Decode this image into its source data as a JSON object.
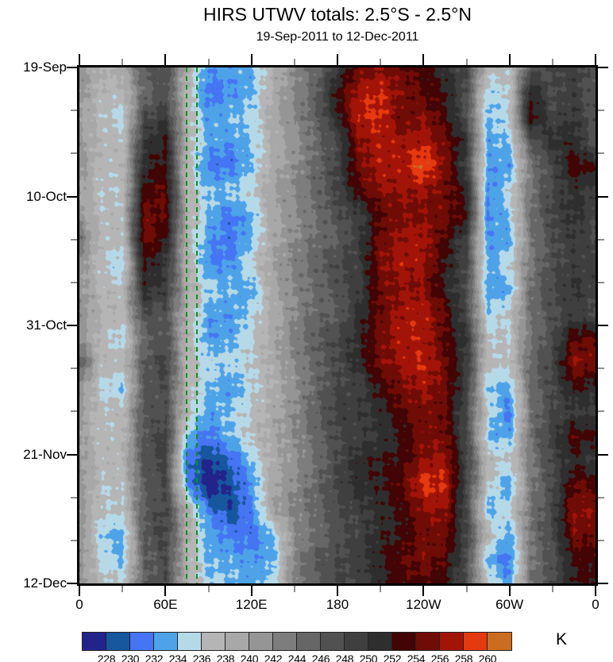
{
  "chart_data": {
    "type": "heatmap",
    "title": "HIRS UTWV totals: 2.5°S - 2.5°N",
    "subtitle": "19-Sep-2011 to 12-Dec-2011",
    "x_axis": {
      "range_deg": [
        0,
        360
      ],
      "major_ticks": [
        {
          "lon": 0,
          "label": "0"
        },
        {
          "lon": 60,
          "label": "60E"
        },
        {
          "lon": 120,
          "label": "120E"
        },
        {
          "lon": 180,
          "label": "180"
        },
        {
          "lon": 240,
          "label": "120W"
        },
        {
          "lon": 300,
          "label": "60W"
        },
        {
          "lon": 360,
          "label": "0"
        }
      ],
      "minor_lons": [
        30,
        90,
        150,
        210,
        270,
        330
      ]
    },
    "y_axis": {
      "range_days": [
        0,
        84
      ],
      "major_ticks": [
        {
          "day": 0,
          "label": "19-Sep"
        },
        {
          "day": 21,
          "label": "10-Oct"
        },
        {
          "day": 42,
          "label": "31-Oct"
        },
        {
          "day": 63,
          "label": "21-Nov"
        },
        {
          "day": 84,
          "label": "12-Dec"
        }
      ],
      "minor_days": [
        7,
        14,
        28,
        35,
        49,
        56,
        70,
        77
      ]
    },
    "colorbar": {
      "unit": "K",
      "boundary_labels": [
        "228",
        "230",
        "232",
        "234",
        "236",
        "238",
        "240",
        "242",
        "244",
        "246",
        "248",
        "250",
        "252",
        "254",
        "256",
        "258",
        "260"
      ],
      "segment_colors": [
        "#23238c",
        "#16579e",
        "#4575f2",
        "#4ea3e8",
        "#b6d9e8",
        "#b5b5b5",
        "#a8a8a8",
        "#959595",
        "#7d7d7d",
        "#666666",
        "#515151",
        "#3f3f3f",
        "#2e2e2e",
        "#420404",
        "#700c06",
        "#a31408",
        "#e5390f",
        "#ca6d20"
      ]
    },
    "levels_K": {
      "min_boundary": 228,
      "max_boundary": 260,
      "step": 2
    },
    "lon_grid_step_deg": 15,
    "time_grid_step_days": 4,
    "values_K": [
      [
        241,
        237,
        238,
        246,
        248,
        238,
        232,
        233,
        234,
        239,
        242,
        245,
        250,
        255,
        256,
        254,
        252,
        250,
        248,
        237,
        236,
        246,
        248,
        250,
        247
      ],
      [
        241,
        237,
        237,
        245,
        248,
        238,
        231,
        232,
        234,
        239,
        242,
        245,
        252,
        257,
        258,
        255,
        253,
        252,
        248,
        235,
        236,
        252,
        248,
        250,
        247
      ],
      [
        241,
        237,
        235,
        248,
        250,
        238,
        232,
        233,
        234,
        239,
        242,
        245,
        251,
        258,
        259,
        255,
        256,
        253,
        248,
        234,
        236,
        253,
        248,
        250,
        247
      ],
      [
        241,
        237,
        236,
        249,
        252,
        238,
        233,
        232,
        234,
        239,
        242,
        245,
        248,
        256,
        258,
        257,
        257,
        254,
        250,
        233,
        234,
        246,
        250,
        251,
        247
      ],
      [
        241,
        237,
        237,
        251,
        253,
        238,
        232,
        231,
        234,
        239,
        242,
        245,
        248,
        254,
        257,
        257,
        260,
        255,
        248,
        233,
        233,
        244,
        248,
        254,
        253
      ],
      [
        241,
        237,
        237,
        253,
        254,
        238,
        234,
        234,
        235,
        239,
        242,
        245,
        248,
        253,
        256,
        257,
        257,
        255,
        252,
        232,
        236,
        244,
        248,
        250,
        249
      ],
      [
        241,
        237,
        237,
        254,
        253,
        238,
        234,
        231,
        233,
        239,
        242,
        245,
        248,
        249,
        254,
        256,
        256,
        255,
        252,
        231,
        234,
        244,
        248,
        250,
        248
      ],
      [
        243,
        237,
        237,
        255,
        252,
        238,
        233,
        232,
        234,
        239,
        242,
        245,
        246,
        249,
        254,
        256,
        257,
        253,
        248,
        232,
        233,
        244,
        248,
        250,
        248
      ],
      [
        241,
        237,
        235,
        253,
        250,
        238,
        232,
        232,
        236,
        239,
        242,
        245,
        248,
        249,
        255,
        257,
        257,
        253,
        249,
        233,
        236,
        244,
        248,
        249,
        248
      ],
      [
        241,
        237,
        237,
        251,
        249,
        238,
        234,
        234,
        233,
        239,
        242,
        245,
        248,
        250,
        255,
        256,
        256,
        252,
        248,
        232,
        232,
        244,
        248,
        250,
        248
      ],
      [
        241,
        237,
        237,
        248,
        247,
        238,
        233,
        233,
        236,
        239,
        242,
        245,
        246,
        251,
        254,
        256,
        257,
        254,
        248,
        234,
        236,
        244,
        248,
        250,
        248
      ],
      [
        241,
        237,
        235,
        246,
        248,
        238,
        232,
        233,
        236,
        239,
        242,
        245,
        248,
        251,
        255,
        257,
        257,
        254,
        251,
        237,
        236,
        244,
        248,
        254,
        254
      ],
      [
        247,
        237,
        237,
        246,
        249,
        237,
        234,
        234,
        236,
        239,
        242,
        245,
        248,
        252,
        256,
        257,
        258,
        255,
        250,
        237,
        236,
        244,
        248,
        256,
        255
      ],
      [
        241,
        235,
        233,
        246,
        248,
        238,
        234,
        232,
        236,
        239,
        242,
        245,
        248,
        249,
        253,
        255,
        256,
        254,
        249,
        234,
        233,
        244,
        248,
        253,
        252
      ],
      [
        241,
        237,
        237,
        247,
        248,
        238,
        233,
        234,
        236,
        239,
        242,
        245,
        248,
        249,
        251,
        254,
        255,
        254,
        248,
        237,
        232,
        244,
        248,
        250,
        250
      ],
      [
        241,
        237,
        237,
        246,
        249,
        234,
        231,
        233,
        236,
        239,
        242,
        245,
        248,
        249,
        251,
        253,
        256,
        255,
        248,
        234,
        233,
        244,
        248,
        253,
        252
      ],
      [
        241,
        237,
        237,
        246,
        248,
        231,
        228,
        230,
        234,
        239,
        242,
        245,
        248,
        251,
        252,
        253,
        256,
        256,
        248,
        237,
        236,
        243,
        248,
        251,
        250
      ],
      [
        241,
        237,
        237,
        246,
        248,
        233,
        227,
        229,
        232,
        239,
        242,
        245,
        248,
        250,
        251,
        254,
        259,
        258,
        248,
        237,
        233,
        244,
        248,
        254,
        254
      ],
      [
        241,
        237,
        237,
        246,
        248,
        238,
        231,
        228,
        231,
        239,
        242,
        245,
        248,
        249,
        251,
        253,
        257,
        257,
        248,
        233,
        236,
        244,
        248,
        255,
        255
      ],
      [
        241,
        234,
        233,
        246,
        248,
        238,
        233,
        232,
        231,
        234,
        242,
        245,
        248,
        249,
        251,
        252,
        255,
        255,
        248,
        237,
        232,
        244,
        248,
        255,
        254
      ],
      [
        241,
        235,
        234,
        246,
        248,
        238,
        234,
        234,
        233,
        233,
        242,
        246,
        248,
        249,
        251,
        253,
        255,
        254,
        248,
        233,
        231,
        244,
        248,
        253,
        253
      ],
      [
        241,
        237,
        237,
        246,
        248,
        238,
        234,
        234,
        233,
        234,
        242,
        245,
        248,
        249,
        251,
        253,
        254,
        253,
        248,
        237,
        232,
        244,
        248,
        252,
        252
      ]
    ],
    "reference_lines": {
      "type": "vertical-dashed",
      "color": "#0d9222",
      "lons_east": [
        75,
        82
      ]
    },
    "render_hints": {
      "speckle_amplitude_K": 0.95
    }
  }
}
